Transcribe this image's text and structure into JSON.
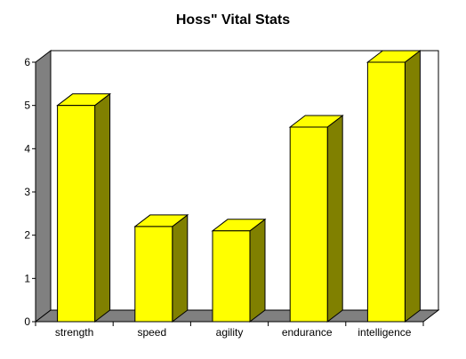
{
  "chart_data": {
    "type": "bar",
    "title": "Hoss\"  Vital Stats",
    "xlabel": "",
    "ylabel": "",
    "categories": [
      "strength",
      "speed",
      "agility",
      "endurance",
      "intelligence"
    ],
    "values": [
      5,
      2.2,
      2.1,
      4.5,
      6
    ],
    "ylim": [
      0,
      6
    ],
    "yticks": [
      0,
      1,
      2,
      3,
      4,
      5,
      6
    ],
    "grid": false,
    "legend": "none",
    "style": "3d",
    "colors": {
      "bar_front": "#ffff00",
      "bar_side": "#808000",
      "bar_top": "#ffff00",
      "floor": "#808080",
      "wall": "#ffffff",
      "wall_side": "#808080"
    }
  }
}
